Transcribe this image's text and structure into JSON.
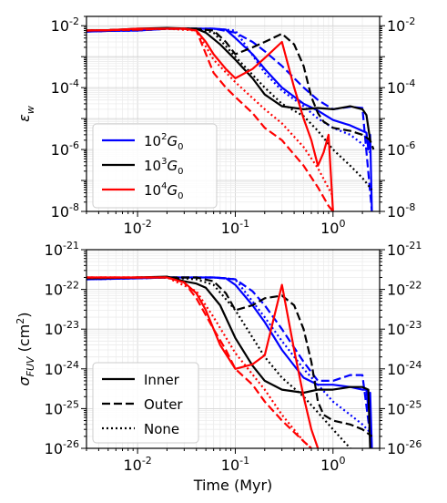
{
  "chart_data": [
    {
      "type": "line",
      "ylabel": "ε_w",
      "xlabel": "",
      "x_scale": "log",
      "y_scale": "log",
      "xlim": [
        0.003,
        3.0
      ],
      "ylim": [
        1e-08,
        0.02
      ],
      "grid": true,
      "legend_position": "bottom-left",
      "x_tick_labels": [
        "10^{-2}",
        "10^{-1}",
        "10^{0}"
      ],
      "y_tick_labels": [
        "10^{-8}",
        "10^{-6}",
        "10^{-4}",
        "10^{-2}"
      ],
      "legend": [
        {
          "base": "10",
          "exp": "2",
          "var": "G",
          "sub": "0",
          "color": "#0000ff"
        },
        {
          "base": "10",
          "exp": "3",
          "var": "G",
          "sub": "0",
          "color": "#000000"
        },
        {
          "base": "10",
          "exp": "4",
          "var": "G",
          "sub": "0",
          "color": "#ff0000"
        }
      ],
      "series": [
        {
          "color": "#0000ff",
          "style": "inner",
          "x": [
            0.003,
            0.005,
            0.01,
            0.02,
            0.04,
            0.06,
            0.08,
            0.1,
            0.15,
            0.2,
            0.3,
            0.5,
            0.7,
            1.0,
            1.5,
            2.0,
            2.2,
            2.3,
            2.4,
            2.5
          ],
          "y": [
            0.0065,
            0.0068,
            0.007,
            0.008,
            0.008,
            0.008,
            0.0075,
            0.004,
            0.0012,
            0.0004,
            0.0001,
            3e-05,
            1.8e-05,
            9e-06,
            6e-06,
            4e-06,
            3.5e-06,
            1e-06,
            3e-06,
            1e-08
          ]
        },
        {
          "color": "#0000ff",
          "style": "outer",
          "x": [
            0.003,
            0.005,
            0.01,
            0.02,
            0.04,
            0.06,
            0.1,
            0.15,
            0.2,
            0.3,
            0.5,
            0.7,
            1.0,
            1.5,
            2.0,
            2.5
          ],
          "y": [
            0.0065,
            0.0068,
            0.007,
            0.008,
            0.008,
            0.008,
            0.006,
            0.003,
            0.0015,
            0.0005,
            0.0001,
            4e-05,
            2e-05,
            2.4e-05,
            2.2e-05,
            1e-08
          ]
        },
        {
          "color": "#0000ff",
          "style": "none",
          "x": [
            0.003,
            0.005,
            0.01,
            0.02,
            0.04,
            0.06,
            0.1,
            0.2,
            0.3,
            0.5,
            0.7,
            1.0,
            1.5,
            2.0,
            2.4
          ],
          "y": [
            0.0065,
            0.0068,
            0.007,
            0.008,
            0.008,
            0.008,
            0.007,
            0.0003,
            8e-05,
            2.5e-05,
            1e-05,
            5e-06,
            3e-06,
            1.5e-06,
            8e-07
          ]
        },
        {
          "color": "#000000",
          "style": "inner",
          "x": [
            0.003,
            0.005,
            0.01,
            0.02,
            0.03,
            0.04,
            0.05,
            0.07,
            0.1,
            0.15,
            0.2,
            0.3,
            0.5,
            0.7,
            1.0,
            1.5,
            2.0,
            2.2,
            2.4
          ],
          "y": [
            0.007,
            0.0072,
            0.008,
            0.0085,
            0.0082,
            0.008,
            0.006,
            0.0025,
            0.0008,
            0.0002,
            6e-05,
            2.5e-05,
            2e-05,
            2.2e-05,
            2e-05,
            2.5e-05,
            2e-05,
            1.3e-05,
            2e-06
          ]
        },
        {
          "color": "#000000",
          "style": "outer",
          "x": [
            0.003,
            0.01,
            0.02,
            0.04,
            0.06,
            0.08,
            0.1,
            0.15,
            0.2,
            0.3,
            0.4,
            0.5,
            0.6,
            0.7,
            0.8,
            1.0,
            1.5,
            2.0,
            2.4,
            2.6
          ],
          "y": [
            0.007,
            0.0075,
            0.008,
            0.008,
            0.007,
            0.003,
            0.0012,
            0.002,
            0.003,
            0.0055,
            0.0025,
            0.0005,
            5e-05,
            1.5e-05,
            8e-06,
            5e-06,
            4e-06,
            3e-06,
            2e-06,
            1e-06
          ]
        },
        {
          "color": "#000000",
          "style": "none",
          "x": [
            0.003,
            0.01,
            0.02,
            0.04,
            0.06,
            0.1,
            0.2,
            0.3,
            0.5,
            0.7,
            1.0,
            1.5,
            2.0,
            2.5
          ],
          "y": [
            0.007,
            0.0075,
            0.008,
            0.008,
            0.006,
            0.001,
            0.0001,
            3e-05,
            1.2e-05,
            4e-06,
            1e-06,
            3e-07,
            1.2e-07,
            5e-08
          ]
        },
        {
          "color": "#ff0000",
          "style": "inner",
          "x": [
            0.003,
            0.005,
            0.01,
            0.02,
            0.03,
            0.04,
            0.05,
            0.06,
            0.08,
            0.1,
            0.15,
            0.2,
            0.3,
            0.4,
            0.5,
            0.6,
            0.7,
            0.8,
            0.9,
            1.0
          ],
          "y": [
            0.007,
            0.0072,
            0.008,
            0.008,
            0.008,
            0.007,
            0.003,
            0.0012,
            0.0004,
            0.0002,
            0.0004,
            0.0009,
            0.003,
            0.0001,
            1e-05,
            2e-06,
            3e-07,
            8e-07,
            3e-06,
            1e-08
          ]
        },
        {
          "color": "#ff0000",
          "style": "outer",
          "x": [
            0.003,
            0.01,
            0.02,
            0.03,
            0.04,
            0.06,
            0.08,
            0.1,
            0.15,
            0.2,
            0.3,
            0.5,
            0.7,
            0.9,
            1.0
          ],
          "y": [
            0.007,
            0.0075,
            0.008,
            0.008,
            0.007,
            0.0003,
            0.0001,
            5e-05,
            1.5e-05,
            5e-06,
            2e-06,
            3e-07,
            6e-08,
            1.5e-08,
            1e-08
          ]
        },
        {
          "color": "#ff0000",
          "style": "none",
          "x": [
            0.003,
            0.01,
            0.02,
            0.04,
            0.06,
            0.1,
            0.2,
            0.3,
            0.5,
            0.7,
            1.0
          ],
          "y": [
            0.007,
            0.0075,
            0.008,
            0.007,
            0.0008,
            0.00015,
            2e-05,
            7e-06,
            1.2e-06,
            2.5e-07,
            3e-08
          ]
        }
      ]
    },
    {
      "type": "line",
      "ylabel": "σ_FUV (cm^2)",
      "xlabel": "Time (Myr)",
      "x_scale": "log",
      "y_scale": "log",
      "xlim": [
        0.003,
        3.0
      ],
      "ylim": [
        1e-26,
        1e-21
      ],
      "grid": true,
      "legend_position": "bottom-left",
      "x_tick_labels": [
        "10^{-2}",
        "10^{-1}",
        "10^{0}"
      ],
      "y_tick_labels": [
        "10^{-26}",
        "10^{-25}",
        "10^{-24}",
        "10^{-23}",
        "10^{-22}",
        "10^{-21}"
      ],
      "legend": [
        {
          "label": "Inner",
          "style": "inner"
        },
        {
          "label": "Outer",
          "style": "outer"
        },
        {
          "label": "None",
          "style": "none"
        }
      ],
      "series": [
        {
          "color": "#0000ff",
          "style": "inner",
          "x": [
            0.003,
            0.005,
            0.01,
            0.02,
            0.04,
            0.06,
            0.08,
            0.1,
            0.15,
            0.2,
            0.3,
            0.5,
            0.7,
            1.0,
            1.5,
            2.0,
            2.2,
            2.3,
            2.4,
            2.5
          ],
          "y": [
            1.8e-22,
            1.85e-22,
            1.9e-22,
            2e-22,
            2e-22,
            2e-22,
            1.9e-22,
            1.3e-22,
            4e-23,
            1.5e-23,
            3e-24,
            6e-25,
            4e-25,
            4e-25,
            3.5e-25,
            3e-25,
            3e-25,
            1e-25,
            2.5e-25,
            1e-26
          ]
        },
        {
          "color": "#0000ff",
          "style": "outer",
          "x": [
            0.003,
            0.01,
            0.02,
            0.04,
            0.06,
            0.1,
            0.15,
            0.2,
            0.3,
            0.5,
            0.7,
            1.0,
            1.5,
            2.0,
            2.5
          ],
          "y": [
            1.8e-22,
            1.9e-22,
            2e-22,
            2e-22,
            2e-22,
            1.8e-22,
            9e-23,
            4e-23,
            1e-23,
            1.5e-24,
            5e-25,
            5e-25,
            7e-25,
            7e-25,
            1e-26
          ]
        },
        {
          "color": "#0000ff",
          "style": "none",
          "x": [
            0.003,
            0.01,
            0.02,
            0.04,
            0.06,
            0.1,
            0.2,
            0.3,
            0.5,
            0.7,
            1.0,
            1.5,
            2.0,
            2.4
          ],
          "y": [
            1.8e-22,
            1.9e-22,
            2e-22,
            2e-22,
            2e-22,
            1.8e-22,
            2e-23,
            5e-24,
            1e-24,
            4e-25,
            1.5e-25,
            7e-26,
            4e-26,
            2.5e-26
          ]
        },
        {
          "color": "#000000",
          "style": "inner",
          "x": [
            0.003,
            0.01,
            0.02,
            0.03,
            0.04,
            0.05,
            0.07,
            0.1,
            0.15,
            0.2,
            0.3,
            0.5,
            0.7,
            1.0,
            1.5,
            2.0,
            2.3,
            2.4
          ],
          "y": [
            1.9e-22,
            2e-22,
            2.1e-22,
            1.6e-22,
            1.4e-22,
            1.1e-22,
            4e-23,
            6e-24,
            1.2e-24,
            5e-25,
            3e-25,
            2.5e-25,
            3e-25,
            3e-25,
            3.5e-25,
            3.5e-25,
            3e-25,
            1e-26
          ]
        },
        {
          "color": "#000000",
          "style": "outer",
          "x": [
            0.003,
            0.01,
            0.02,
            0.04,
            0.06,
            0.08,
            0.1,
            0.15,
            0.2,
            0.3,
            0.4,
            0.5,
            0.6,
            0.7,
            0.8,
            1.0,
            1.5,
            2.0,
            2.5
          ],
          "y": [
            1.9e-22,
            2e-22,
            2e-22,
            2e-22,
            1.6e-22,
            8e-23,
            3e-23,
            4e-23,
            6e-23,
            7e-23,
            4e-23,
            1e-23,
            1.5e-24,
            1.5e-25,
            7e-26,
            5e-26,
            4e-26,
            3e-26,
            2e-26
          ]
        },
        {
          "color": "#000000",
          "style": "none",
          "x": [
            0.003,
            0.01,
            0.02,
            0.04,
            0.06,
            0.1,
            0.2,
            0.3,
            0.5,
            0.7,
            1.0,
            1.5
          ],
          "y": [
            1.9e-22,
            2e-22,
            2e-22,
            1.8e-22,
            1.3e-22,
            3e-23,
            2e-24,
            6e-25,
            2e-25,
            8e-26,
            3e-26,
            1e-26
          ]
        },
        {
          "color": "#ff0000",
          "style": "inner",
          "x": [
            0.003,
            0.005,
            0.01,
            0.02,
            0.03,
            0.04,
            0.05,
            0.07,
            0.1,
            0.15,
            0.2,
            0.3,
            0.4,
            0.5,
            0.6,
            0.7
          ],
          "y": [
            2e-22,
            2e-22,
            2e-22,
            2e-22,
            1.5e-22,
            8e-23,
            3e-23,
            4e-24,
            1e-24,
            1.3e-24,
            2.2e-24,
            1.3e-22,
            3e-24,
            2e-25,
            3e-26,
            1e-26
          ]
        },
        {
          "color": "#ff0000",
          "style": "outer",
          "x": [
            0.003,
            0.01,
            0.02,
            0.03,
            0.04,
            0.06,
            0.08,
            0.1,
            0.15,
            0.2,
            0.3,
            0.5,
            0.6
          ],
          "y": [
            2e-22,
            2e-22,
            2e-22,
            1.5e-22,
            6e-23,
            1e-23,
            3e-24,
            1e-24,
            4e-25,
            1.5e-25,
            5e-26,
            1.5e-26,
            1e-26
          ]
        },
        {
          "color": "#ff0000",
          "style": "none",
          "x": [
            0.003,
            0.01,
            0.02,
            0.04,
            0.06,
            0.1,
            0.2,
            0.3,
            0.5,
            0.6
          ],
          "y": [
            2e-22,
            2e-22,
            2e-22,
            9e-23,
            2e-23,
            2.5e-24,
            3e-25,
            7e-26,
            1.5e-26,
            1e-26
          ]
        }
      ]
    }
  ]
}
